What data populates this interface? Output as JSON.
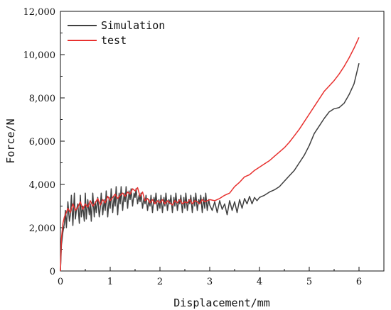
{
  "chart_data": {
    "type": "line",
    "xlabel": "Displacement/mm",
    "ylabel": "Force/N",
    "xlim": [
      0,
      6.5
    ],
    "ylim": [
      0,
      12000
    ],
    "xticks": [
      0,
      1,
      2,
      3,
      4,
      5,
      6
    ],
    "xtick_labels": [
      "0",
      "1",
      "2",
      "3",
      "4",
      "5",
      "6"
    ],
    "yticks": [
      0,
      2000,
      4000,
      6000,
      8000,
      10000,
      12000
    ],
    "ytick_labels": [
      "0",
      "2,000",
      "4,000",
      "6,000",
      "8,000",
      "10,000",
      "12,000"
    ],
    "grid": false,
    "legend_position": "top-left",
    "series": [
      {
        "name": "Simulation",
        "color": "#404040",
        "x": [
          0.0,
          0.02,
          0.05,
          0.08,
          0.1,
          0.12,
          0.15,
          0.18,
          0.2,
          0.22,
          0.25,
          0.28,
          0.3,
          0.32,
          0.35,
          0.38,
          0.4,
          0.42,
          0.45,
          0.48,
          0.5,
          0.52,
          0.55,
          0.58,
          0.6,
          0.62,
          0.65,
          0.68,
          0.7,
          0.72,
          0.75,
          0.78,
          0.8,
          0.82,
          0.85,
          0.88,
          0.9,
          0.92,
          0.95,
          0.98,
          1.0,
          1.02,
          1.05,
          1.08,
          1.1,
          1.12,
          1.15,
          1.18,
          1.2,
          1.22,
          1.25,
          1.28,
          1.3,
          1.32,
          1.35,
          1.38,
          1.4,
          1.42,
          1.45,
          1.48,
          1.5,
          1.52,
          1.55,
          1.58,
          1.6,
          1.62,
          1.65,
          1.68,
          1.7,
          1.72,
          1.75,
          1.78,
          1.8,
          1.82,
          1.85,
          1.88,
          1.9,
          1.92,
          1.95,
          1.98,
          2.0,
          2.02,
          2.05,
          2.08,
          2.1,
          2.12,
          2.15,
          2.18,
          2.2,
          2.22,
          2.25,
          2.28,
          2.3,
          2.32,
          2.35,
          2.38,
          2.4,
          2.42,
          2.45,
          2.48,
          2.5,
          2.52,
          2.55,
          2.58,
          2.6,
          2.62,
          2.65,
          2.68,
          2.7,
          2.72,
          2.75,
          2.78,
          2.8,
          2.82,
          2.85,
          2.88,
          2.9,
          2.92,
          2.95,
          2.98,
          3.0,
          3.05,
          3.1,
          3.15,
          3.2,
          3.25,
          3.3,
          3.35,
          3.4,
          3.45,
          3.5,
          3.55,
          3.6,
          3.65,
          3.7,
          3.75,
          3.8,
          3.85,
          3.9,
          3.95,
          4.0,
          4.1,
          4.2,
          4.3,
          4.4,
          4.5,
          4.6,
          4.7,
          4.8,
          4.9,
          5.0,
          5.1,
          5.2,
          5.3,
          5.4,
          5.5,
          5.6,
          5.7,
          5.8,
          5.9,
          6.0
        ],
        "y": [
          0,
          1200,
          1800,
          2200,
          2800,
          2000,
          3200,
          2300,
          2600,
          3500,
          2100,
          3600,
          2400,
          2800,
          3100,
          2200,
          3500,
          2500,
          3000,
          2300,
          3600,
          2400,
          3300,
          2600,
          3100,
          2300,
          3600,
          2500,
          3200,
          2700,
          3400,
          2500,
          2900,
          3600,
          2600,
          3300,
          2800,
          3700,
          2500,
          3400,
          2900,
          3800,
          2700,
          3500,
          3000,
          3900,
          2600,
          3600,
          3100,
          3900,
          2800,
          3600,
          3200,
          3900,
          2900,
          3700,
          3300,
          3800,
          3000,
          3600,
          3400,
          3800,
          3100,
          3500,
          3200,
          3600,
          2900,
          3400,
          3100,
          3500,
          2800,
          3300,
          3000,
          3500,
          2700,
          3400,
          3100,
          3600,
          2800,
          3300,
          2900,
          3500,
          2700,
          3400,
          3000,
          3600,
          2800,
          3300,
          3100,
          3500,
          2700,
          3400,
          3000,
          3600,
          2800,
          3300,
          3100,
          3500,
          2700,
          3400,
          2900,
          3600,
          2800,
          3300,
          3100,
          3500,
          2700,
          3400,
          3000,
          3600,
          2800,
          3300,
          3100,
          3500,
          2700,
          3400,
          2900,
          3600,
          2800,
          3300,
          3050,
          2800,
          3200,
          2700,
          3250,
          2850,
          3100,
          2600,
          3250,
          2800,
          3200,
          2700,
          3300,
          2900,
          3350,
          3100,
          3450,
          3100,
          3400,
          3250,
          3400,
          3500,
          3650,
          3750,
          3900,
          4150,
          4400,
          4650,
          5000,
          5350,
          5800,
          6350,
          6700,
          7050,
          7350,
          7500,
          7550,
          7750,
          8150,
          8650,
          9600
        ]
      },
      {
        "name": "test",
        "color": "#e8312f",
        "x": [
          0.0,
          0.02,
          0.05,
          0.08,
          0.1,
          0.15,
          0.2,
          0.25,
          0.3,
          0.35,
          0.4,
          0.45,
          0.5,
          0.55,
          0.6,
          0.65,
          0.7,
          0.75,
          0.8,
          0.85,
          0.9,
          0.95,
          1.0,
          1.05,
          1.1,
          1.15,
          1.2,
          1.25,
          1.3,
          1.35,
          1.4,
          1.45,
          1.5,
          1.55,
          1.6,
          1.65,
          1.7,
          1.75,
          1.8,
          1.85,
          1.9,
          1.95,
          2.0,
          2.05,
          2.1,
          2.15,
          2.2,
          2.25,
          2.3,
          2.35,
          2.4,
          2.45,
          2.5,
          2.55,
          2.6,
          2.65,
          2.7,
          2.75,
          2.8,
          2.85,
          2.9,
          2.95,
          3.0,
          3.1,
          3.2,
          3.3,
          3.4,
          3.5,
          3.6,
          3.7,
          3.8,
          3.9,
          4.0,
          4.1,
          4.2,
          4.3,
          4.4,
          4.5,
          4.6,
          4.7,
          4.8,
          4.9,
          5.0,
          5.1,
          5.2,
          5.3,
          5.4,
          5.5,
          5.6,
          5.7,
          5.8,
          5.9,
          6.0
        ],
        "y": [
          0,
          1500,
          2200,
          2500,
          2600,
          2900,
          2700,
          3100,
          2800,
          2950,
          3200,
          2850,
          3100,
          2950,
          3250,
          3000,
          3150,
          3350,
          3050,
          3300,
          3150,
          3450,
          3250,
          3400,
          3550,
          3350,
          3500,
          3600,
          3450,
          3650,
          3550,
          3800,
          3700,
          3850,
          3450,
          3650,
          3250,
          3350,
          3150,
          3300,
          3100,
          3250,
          3150,
          3300,
          3100,
          3250,
          3150,
          3050,
          3250,
          3150,
          3300,
          3100,
          3200,
          3150,
          3300,
          3100,
          3250,
          3200,
          3100,
          3300,
          3200,
          3250,
          3300,
          3250,
          3350,
          3500,
          3600,
          3900,
          4100,
          4350,
          4450,
          4650,
          4800,
          4950,
          5100,
          5300,
          5500,
          5700,
          5950,
          6250,
          6550,
          6900,
          7250,
          7600,
          7950,
          8300,
          8550,
          8800,
          9100,
          9450,
          9850,
          10300,
          10800
        ]
      }
    ]
  }
}
